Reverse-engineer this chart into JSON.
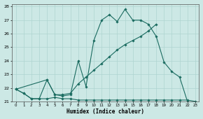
{
  "xlabel": "Humidex (Indice chaleur)",
  "bg_color": "#cce8e5",
  "grid_color": "#aed4d0",
  "line_color": "#1a6b60",
  "xlim": [
    -0.5,
    23.5
  ],
  "ylim": [
    21,
    28.2
  ],
  "xticks": [
    0,
    1,
    2,
    3,
    4,
    5,
    6,
    7,
    8,
    9,
    10,
    11,
    12,
    13,
    14,
    15,
    16,
    17,
    18,
    19,
    20,
    21,
    22,
    23
  ],
  "yticks": [
    21,
    22,
    23,
    24,
    25,
    26,
    27,
    28
  ],
  "lines": [
    {
      "x": [
        0,
        1,
        2,
        3,
        4,
        5,
        6,
        7,
        8,
        9,
        10,
        11,
        12,
        13,
        14,
        15,
        16,
        17,
        18,
        19,
        20,
        21,
        22,
        23
      ],
      "y": [
        21.9,
        21.6,
        21.2,
        21.2,
        21.2,
        21.3,
        21.2,
        21.2,
        21.1,
        21.1,
        21.1,
        21.1,
        21.1,
        21.1,
        21.1,
        21.1,
        21.1,
        21.1,
        21.1,
        21.1,
        21.1,
        21.1,
        21.1,
        21.0
      ]
    },
    {
      "x": [
        0,
        4,
        5,
        6,
        7,
        8,
        9,
        10,
        11,
        12,
        13,
        14,
        15,
        16,
        17,
        18
      ],
      "y": [
        21.9,
        22.6,
        21.5,
        21.5,
        21.6,
        22.3,
        22.8,
        23.3,
        23.8,
        24.3,
        24.8,
        25.2,
        25.5,
        25.8,
        26.2,
        26.7
      ]
    },
    {
      "x": [
        0,
        1,
        2,
        3,
        4,
        5,
        6,
        7,
        8,
        9,
        10,
        11,
        12,
        13,
        14,
        15,
        16,
        17,
        18,
        19,
        20,
        21,
        22
      ],
      "y": [
        21.9,
        21.6,
        21.2,
        21.2,
        22.6,
        21.5,
        21.4,
        21.5,
        24.0,
        22.1,
        25.5,
        27.0,
        27.4,
        26.9,
        27.8,
        27.0,
        27.0,
        26.7,
        25.8,
        23.9,
        23.2,
        22.8,
        21.0
      ]
    }
  ]
}
